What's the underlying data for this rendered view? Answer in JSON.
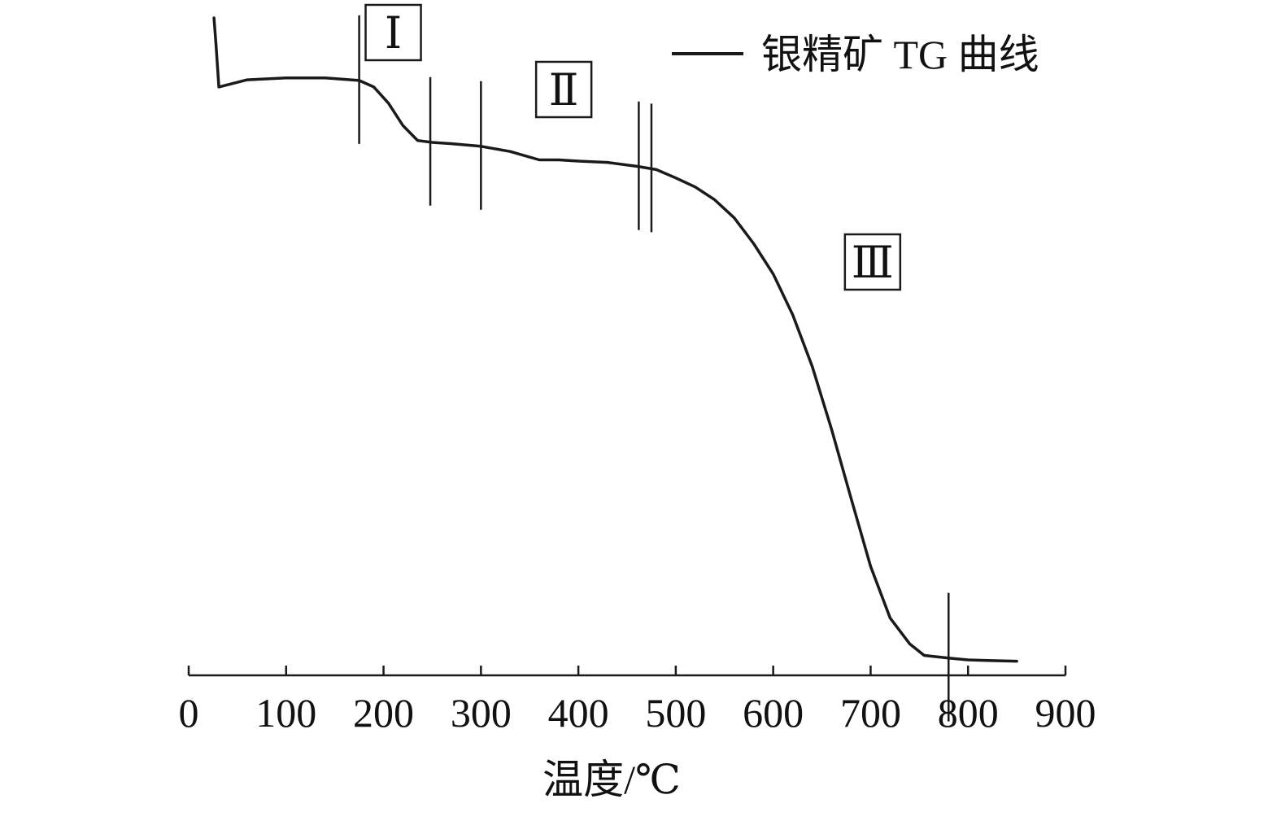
{
  "chart_data": {
    "type": "line",
    "title": "",
    "xlabel": "温度/℃",
    "ylabel": "",
    "xlim": [
      0,
      900
    ],
    "x_ticks": [
      "0",
      "100",
      "200",
      "300",
      "400",
      "500",
      "600",
      "700",
      "800",
      "900"
    ],
    "grid": false,
    "legend_position": "top-right",
    "line_color": "#1a1a1a",
    "series": [
      {
        "name": "银精矿 TG 曲线",
        "unit_note": "y values read as relative mass fraction (0 = lowest plotted level, 1 = top of curve); the y axis has no printed scale",
        "points": [
          [
            26,
            1.0
          ],
          [
            28,
            0.96
          ],
          [
            31,
            0.893
          ],
          [
            60,
            0.904
          ],
          [
            100,
            0.907
          ],
          [
            140,
            0.907
          ],
          [
            175,
            0.903
          ],
          [
            190,
            0.893
          ],
          [
            205,
            0.868
          ],
          [
            220,
            0.833
          ],
          [
            235,
            0.81
          ],
          [
            250,
            0.807
          ],
          [
            270,
            0.805
          ],
          [
            300,
            0.801
          ],
          [
            330,
            0.793
          ],
          [
            360,
            0.78
          ],
          [
            380,
            0.78
          ],
          [
            400,
            0.778
          ],
          [
            430,
            0.776
          ],
          [
            460,
            0.77
          ],
          [
            480,
            0.765
          ],
          [
            500,
            0.752
          ],
          [
            520,
            0.738
          ],
          [
            540,
            0.718
          ],
          [
            560,
            0.69
          ],
          [
            580,
            0.65
          ],
          [
            600,
            0.603
          ],
          [
            620,
            0.54
          ],
          [
            640,
            0.46
          ],
          [
            660,
            0.362
          ],
          [
            680,
            0.255
          ],
          [
            700,
            0.15
          ],
          [
            720,
            0.07
          ],
          [
            740,
            0.03
          ],
          [
            755,
            0.012
          ],
          [
            780,
            0.008
          ],
          [
            800,
            0.005
          ],
          [
            820,
            0.004
          ],
          [
            850,
            0.003
          ]
        ]
      }
    ],
    "stage_boundaries": [
      175,
      248,
      300,
      462,
      475,
      780
    ],
    "stage_labels": [
      {
        "text": "Ⅰ",
        "x": 210
      },
      {
        "text": "Ⅱ",
        "x": 385
      },
      {
        "text": "Ⅲ",
        "x": 702
      }
    ]
  }
}
